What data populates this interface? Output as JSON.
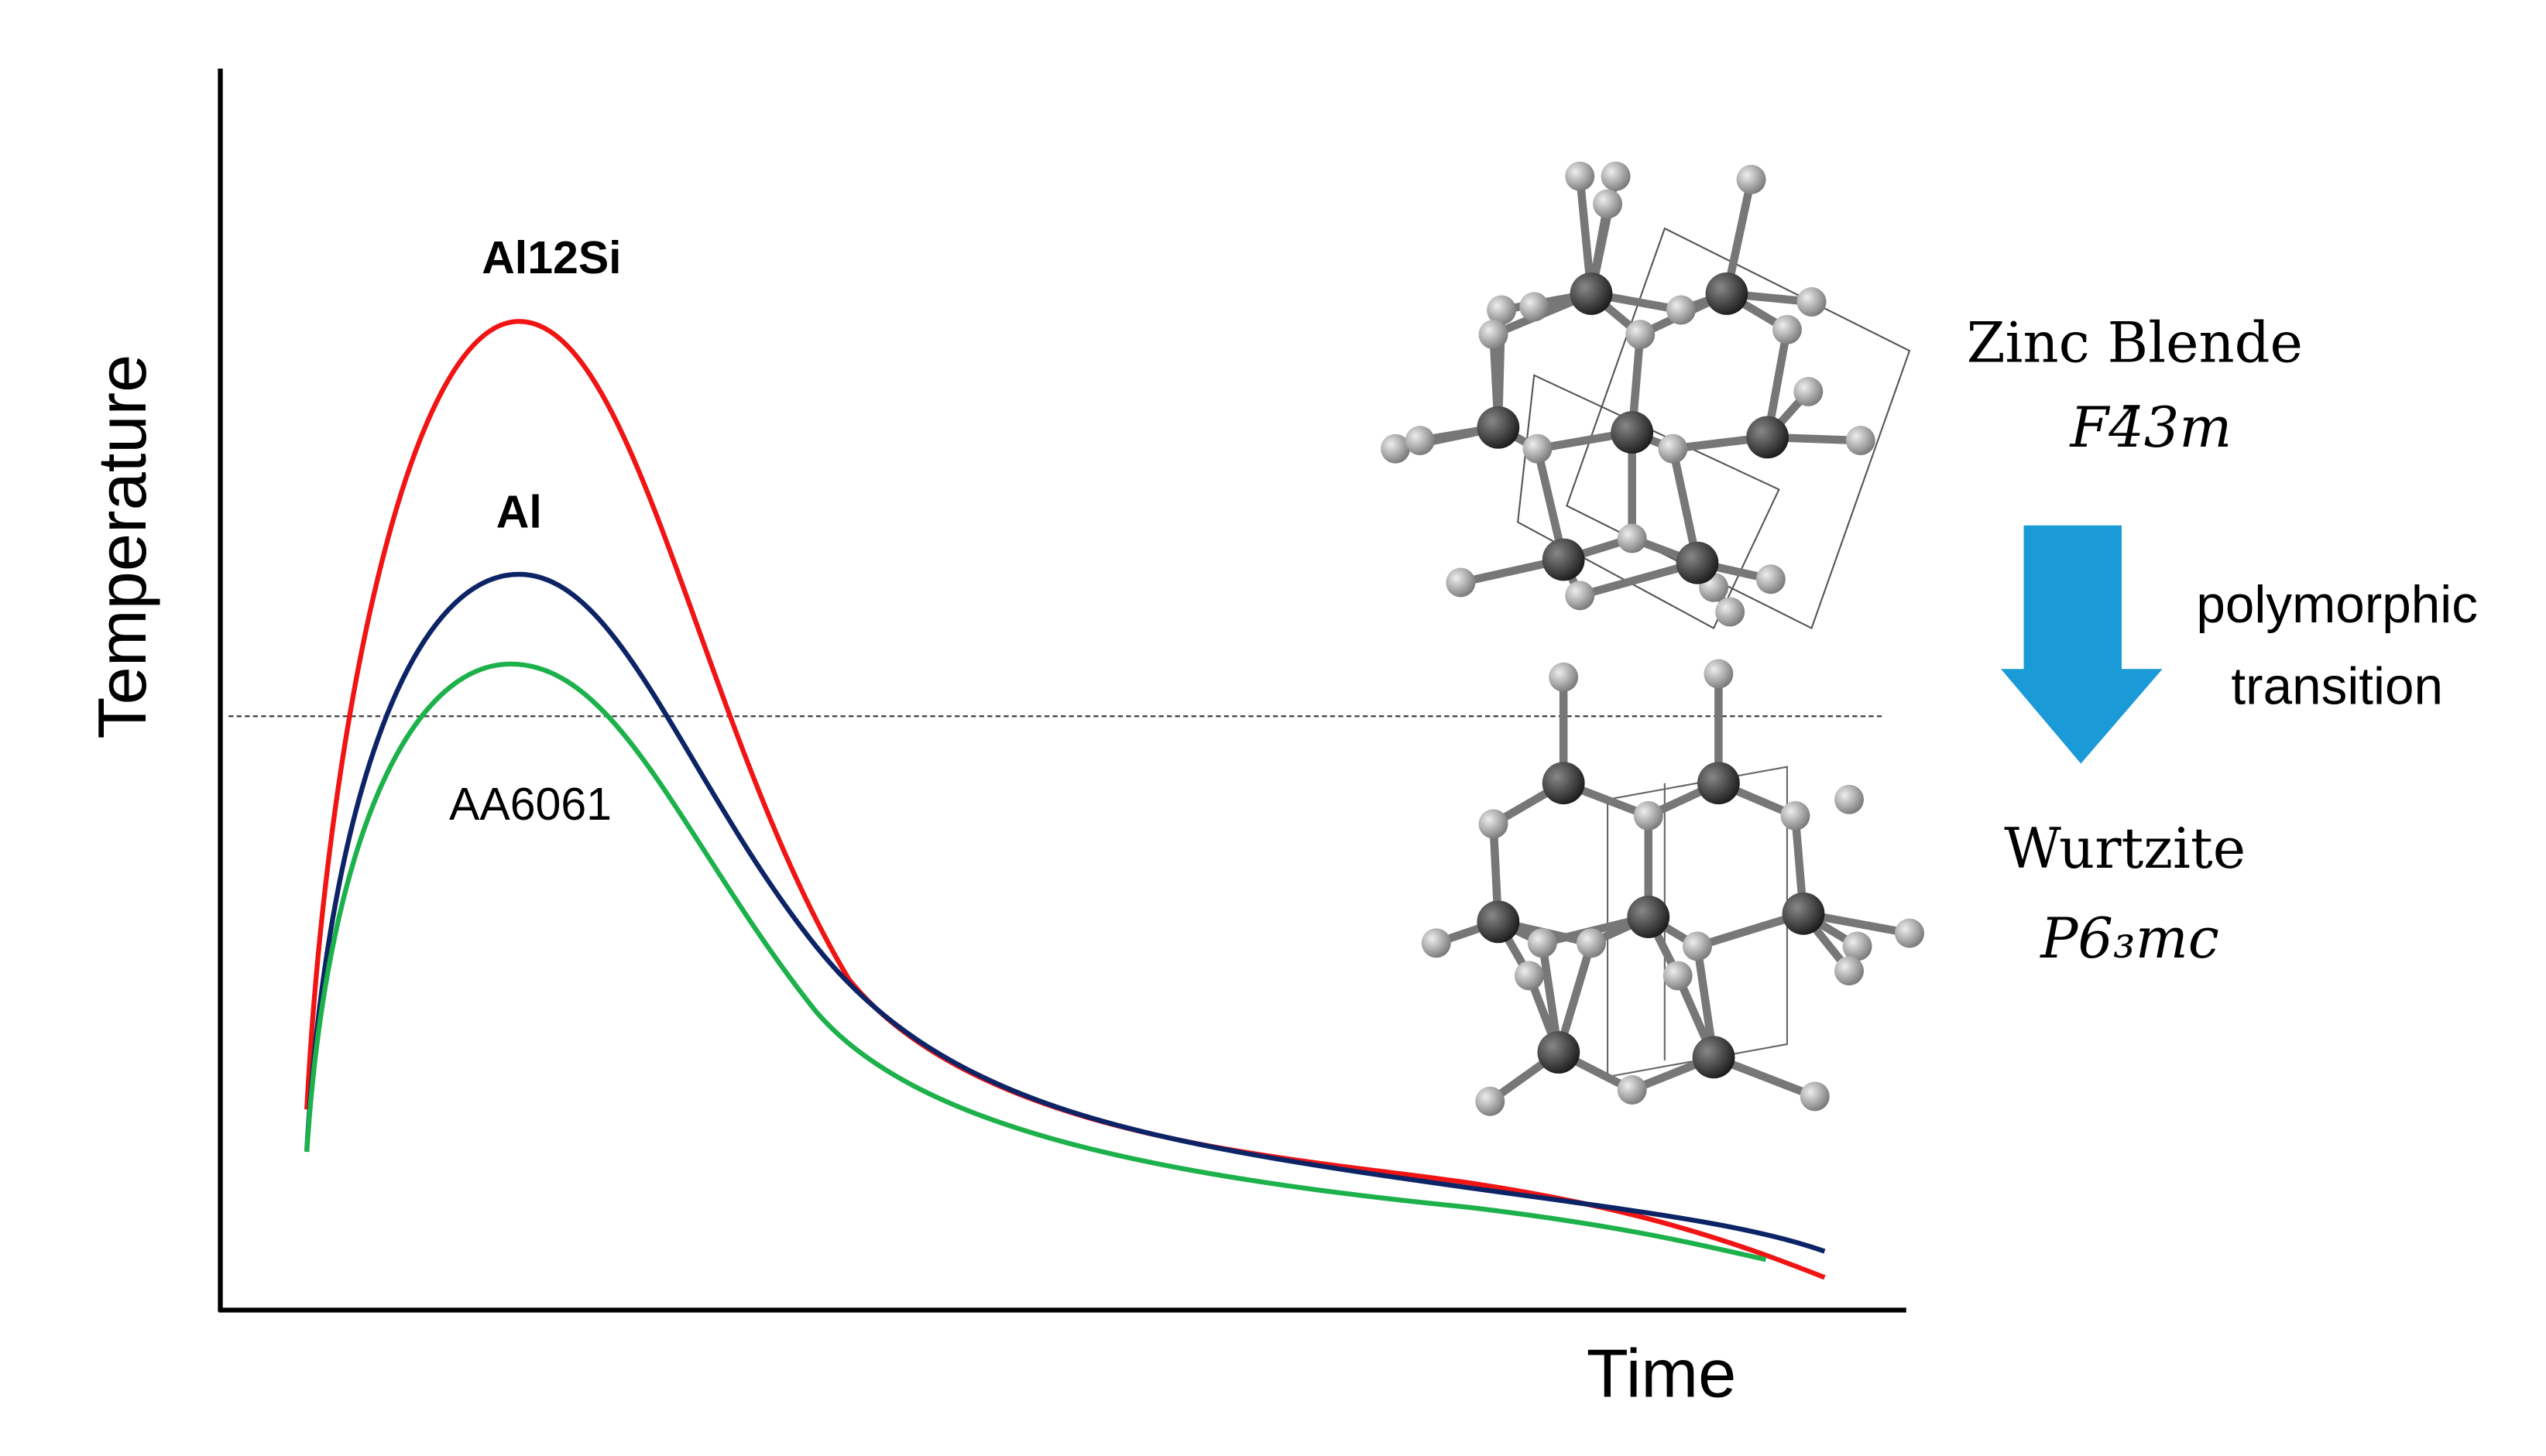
{
  "axes": {
    "y_label": "Temperature",
    "x_label": "Time"
  },
  "curves": [
    {
      "label": "Al12Si"
    },
    {
      "label": "Al"
    },
    {
      "label": "AA6061"
    }
  ],
  "structures": [
    {
      "name": "Zinc Blende",
      "space_group": "F4̄3m"
    },
    {
      "name": "Wurtzite",
      "space_group": "P6₃mc"
    }
  ],
  "transition": [
    "polymorphic",
    "transition"
  ]
}
